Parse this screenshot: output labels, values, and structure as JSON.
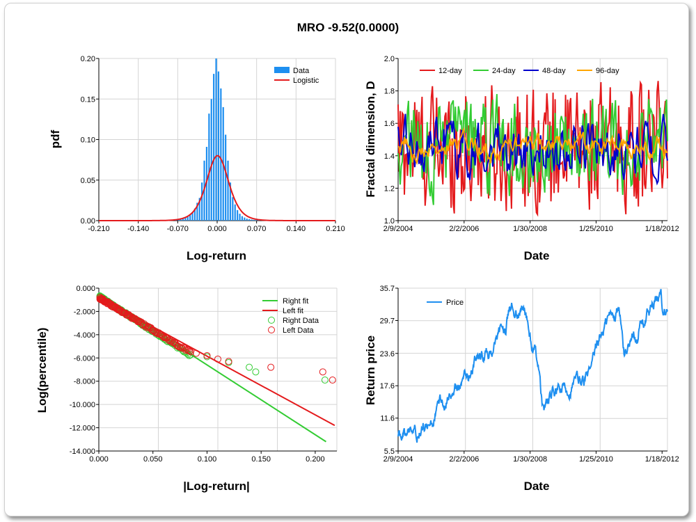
{
  "title": "MRO -9.52(0.0000)",
  "colors": {
    "blue": "#1e8ff0",
    "red": "#e41a1c",
    "green": "#33cc33",
    "navy": "#0000cc",
    "orange": "#ffa500"
  },
  "chart_data": [
    {
      "id": "pdf",
      "type": "bar",
      "xlabel": "Log-return",
      "ylabel": "pdf",
      "xlim": [
        -0.21,
        0.21
      ],
      "ylim": [
        0,
        0.2
      ],
      "xticks": [
        "-0.210",
        "-0.140",
        "-0.070",
        "0.000",
        "0.070",
        "0.140",
        "0.210"
      ],
      "yticks": [
        "0.00",
        "0.05",
        "0.10",
        "0.15",
        "0.20"
      ],
      "legend": [
        "Data",
        "Logistic"
      ],
      "bin_width": 0.0042,
      "bins": [
        -0.09,
        -0.0858,
        -0.0816,
        -0.0774,
        -0.0732,
        -0.069,
        -0.0648,
        -0.0606,
        -0.0564,
        -0.0522,
        -0.048,
        -0.0438,
        -0.0396,
        -0.0354,
        -0.0312,
        -0.027,
        -0.0228,
        -0.0186,
        -0.0144,
        -0.0102,
        -0.006,
        -0.0018,
        0.0024,
        0.0066,
        0.0108,
        0.015,
        0.0192,
        0.0234,
        0.0276,
        0.0318,
        0.036,
        0.0402,
        0.0444,
        0.0486,
        0.0528,
        0.057,
        0.0612,
        0.0654,
        0.0696,
        0.0738,
        0.078,
        0.0822,
        0.0864
      ],
      "values": [
        0.0005,
        0.0005,
        0.0008,
        0.001,
        0.0012,
        0.0015,
        0.002,
        0.0028,
        0.0035,
        0.005,
        0.007,
        0.0105,
        0.015,
        0.022,
        0.028,
        0.047,
        0.074,
        0.091,
        0.132,
        0.15,
        0.181,
        0.2,
        0.184,
        0.163,
        0.14,
        0.106,
        0.074,
        0.047,
        0.029,
        0.02,
        0.013,
        0.0085,
        0.0055,
        0.0038,
        0.0025,
        0.0018,
        0.0013,
        0.001,
        0.0007,
        0.0006,
        0.0005,
        0.0004,
        0.0003
      ],
      "logistic": {
        "mu": 0.0007,
        "s": 0.0131
      }
    },
    {
      "id": "fractal",
      "type": "line",
      "xlabel": "Date",
      "ylabel": "Fractal dimension, D",
      "ylim": [
        1.0,
        2.0
      ],
      "xticks": [
        "2/9/2004",
        "2/2/2006",
        "1/30/2008",
        "1/25/2010",
        "1/18/2012"
      ],
      "yticks": [
        "1.0",
        "1.2",
        "1.4",
        "1.6",
        "1.8",
        "2.0"
      ],
      "series": [
        {
          "name": "12-day",
          "color": "#e41a1c"
        },
        {
          "name": "24-day",
          "color": "#33cc33"
        },
        {
          "name": "48-day",
          "color": "#0000cc"
        },
        {
          "name": "96-day",
          "color": "#ffa500"
        }
      ]
    },
    {
      "id": "tail",
      "type": "scatter",
      "xlabel": "|Log-return|",
      "ylabel": "Log(percentile)",
      "xlim": [
        0,
        0.22
      ],
      "ylim": [
        -14,
        0
      ],
      "xticks": [
        "0.000",
        "0.050",
        "0.100",
        "0.150",
        "0.200"
      ],
      "yticks": [
        "0.000",
        "-2.000",
        "-4.000",
        "-6.000",
        "-8.000",
        "-10.000",
        "-12.000",
        "-14.000"
      ],
      "legend": [
        "Right fit",
        "Left fit",
        "Right Data",
        "Left Data"
      ],
      "right_fit": {
        "x": [
          0,
          0.21
        ],
        "y": [
          -0.6,
          -13.2
        ]
      },
      "left_fit": {
        "x": [
          0,
          0.218
        ],
        "y": [
          -0.8,
          -11.8
        ]
      },
      "right_extremes": [
        [
          0.1,
          -5.9
        ],
        [
          0.12,
          -6.4
        ],
        [
          0.139,
          -6.8
        ],
        [
          0.145,
          -7.2
        ],
        [
          0.209,
          -7.9
        ]
      ],
      "left_extremes": [
        [
          0.09,
          -5.6
        ],
        [
          0.1,
          -5.8
        ],
        [
          0.11,
          -6.1
        ],
        [
          0.12,
          -6.3
        ],
        [
          0.159,
          -6.8
        ],
        [
          0.207,
          -7.2
        ],
        [
          0.216,
          -7.9
        ]
      ]
    },
    {
      "id": "price",
      "type": "line",
      "xlabel": "Date",
      "ylabel": "Return price",
      "ylim": [
        5.5,
        35.7
      ],
      "xticks": [
        "2/9/2004",
        "2/2/2006",
        "1/30/2008",
        "1/25/2010",
        "1/18/2012"
      ],
      "yticks": [
        "5.5",
        "11.6",
        "17.6",
        "23.6",
        "29.7",
        "35.7"
      ],
      "legend": [
        "Price"
      ],
      "anchors": [
        [
          0,
          7.5
        ],
        [
          0.03,
          8.5
        ],
        [
          0.08,
          9.5
        ],
        [
          0.12,
          9.8
        ],
        [
          0.16,
          14.5
        ],
        [
          0.2,
          17
        ],
        [
          0.24,
          18
        ],
        [
          0.28,
          21
        ],
        [
          0.32,
          23
        ],
        [
          0.36,
          25
        ],
        [
          0.4,
          28
        ],
        [
          0.42,
          33
        ],
        [
          0.44,
          31
        ],
        [
          0.47,
          32
        ],
        [
          0.5,
          24
        ],
        [
          0.52,
          22
        ],
        [
          0.535,
          13
        ],
        [
          0.55,
          14
        ],
        [
          0.58,
          16
        ],
        [
          0.62,
          17
        ],
        [
          0.66,
          18
        ],
        [
          0.7,
          19
        ],
        [
          0.72,
          20
        ],
        [
          0.74,
          25
        ],
        [
          0.76,
          28
        ],
        [
          0.78,
          30
        ],
        [
          0.8,
          31
        ],
        [
          0.82,
          32
        ],
        [
          0.84,
          23
        ],
        [
          0.86,
          26
        ],
        [
          0.88,
          27
        ],
        [
          0.9,
          29
        ],
        [
          0.92,
          30
        ],
        [
          0.94,
          32
        ],
        [
          0.96,
          33
        ],
        [
          0.975,
          35
        ],
        [
          0.985,
          31
        ],
        [
          1.0,
          33
        ]
      ]
    }
  ]
}
